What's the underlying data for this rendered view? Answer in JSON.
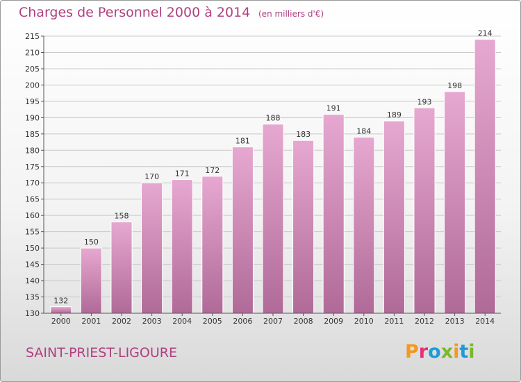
{
  "header": {
    "title": "Charges de Personnel 2000 à 2014",
    "subtitle": "(en milliers d'€)"
  },
  "footer": {
    "commune": "SAINT-PRIEST-LIGOURE",
    "logo_letters": [
      "P",
      "r",
      "o",
      "x",
      "i",
      "t",
      "i"
    ]
  },
  "colors": {
    "title": "#b04080",
    "bar_top": "#e6a8d0",
    "bar_bottom": "#b06a98",
    "logo": [
      "#f39a1e",
      "#e2327a",
      "#1f9bd7",
      "#7ab929",
      "#f39a1e",
      "#1f9bd7",
      "#7ab929"
    ]
  },
  "chart_data": {
    "type": "bar",
    "title": "Charges de Personnel 2000 à 2014",
    "subtitle": "(en milliers d'€)",
    "categories": [
      "2000",
      "2001",
      "2002",
      "2003",
      "2004",
      "2005",
      "2006",
      "2007",
      "2008",
      "2009",
      "2010",
      "2011",
      "2012",
      "2013",
      "2014"
    ],
    "values": [
      132,
      150,
      158,
      170,
      171,
      172,
      181,
      188,
      183,
      191,
      184,
      189,
      193,
      198,
      214
    ],
    "ylim": [
      130,
      215
    ],
    "yticks": [
      130,
      135,
      140,
      145,
      150,
      155,
      160,
      165,
      170,
      175,
      180,
      185,
      190,
      195,
      200,
      205,
      210,
      215
    ],
    "grid": true,
    "data_labels": true
  }
}
